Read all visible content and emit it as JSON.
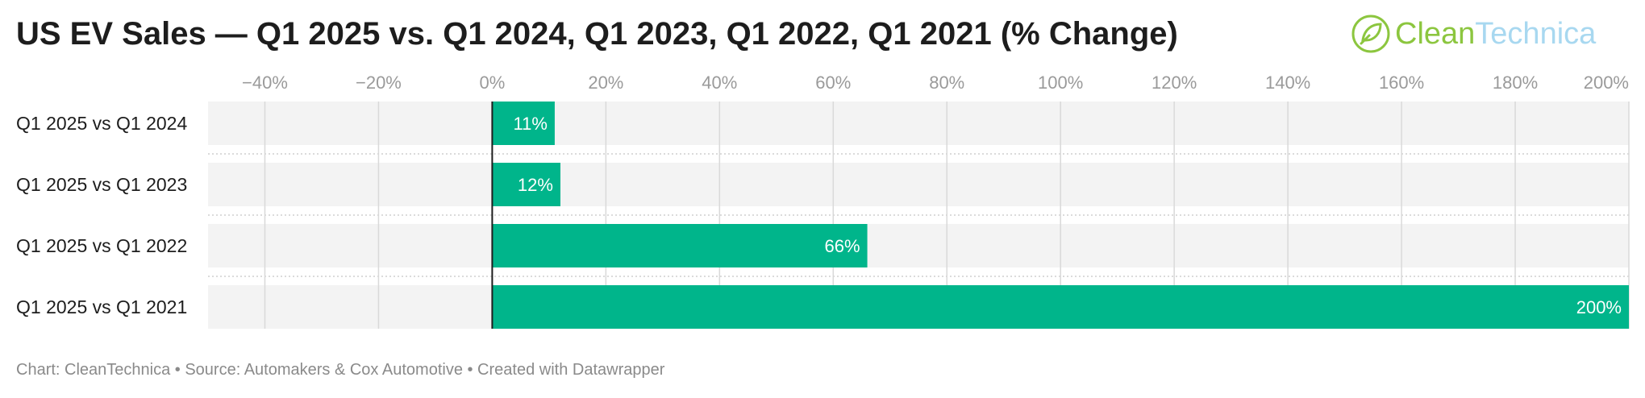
{
  "title": "US EV Sales — Q1 2025 vs. Q1 2024, Q1 2023, Q1 2022, Q1 2021 (% Change)",
  "logo": {
    "name": "CleanTechnica",
    "part1": "Clean",
    "part2": "Technica",
    "color": "#8cc63f",
    "icon": "plug-leaf-icon"
  },
  "footer": "Chart: CleanTechnica • Source: Automakers & Cox Automotive • Created with Datawrapper",
  "chart_data": {
    "type": "bar",
    "orientation": "horizontal",
    "title": "US EV Sales — Q1 2025 vs. Q1 2024, Q1 2023, Q1 2022, Q1 2021 (% Change)",
    "categories": [
      "Q1 2025 vs Q1 2024",
      "Q1 2025 vs Q1 2023",
      "Q1 2025 vs Q1 2022",
      "Q1 2025 vs Q1 2021"
    ],
    "values": [
      11,
      12,
      66,
      200
    ],
    "value_labels": [
      "11%",
      "12%",
      "66%",
      "200%"
    ],
    "xlim": [
      -50,
      200
    ],
    "xticks": [
      -40,
      -20,
      0,
      20,
      40,
      60,
      80,
      100,
      120,
      140,
      160,
      180,
      200
    ],
    "xtick_labels": [
      "−40%",
      "−20%",
      "0%",
      "20%",
      "40%",
      "60%",
      "80%",
      "100%",
      "120%",
      "140%",
      "160%",
      "180%",
      "200%"
    ],
    "xlabel": "",
    "ylabel": "",
    "grid": true,
    "bar_color": "#00b58b",
    "track_color": "#f3f3f3"
  }
}
